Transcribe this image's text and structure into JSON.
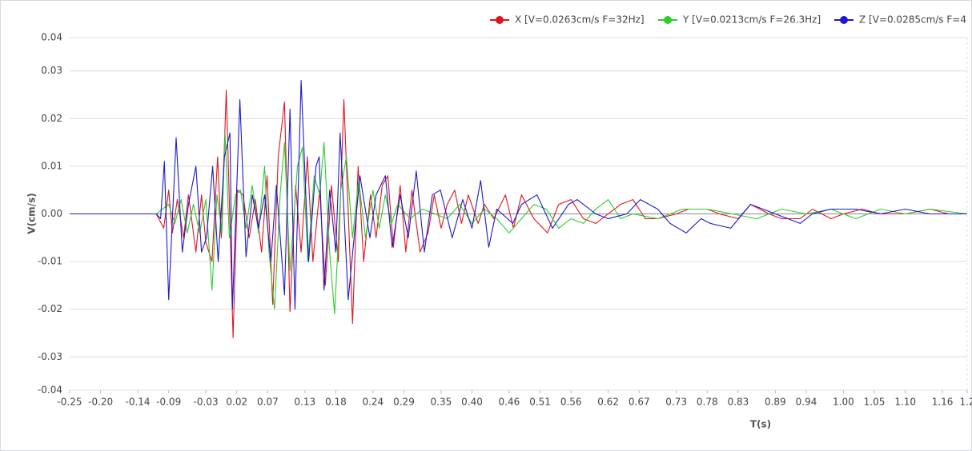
{
  "chart_data": {
    "type": "line",
    "y_label": "V(cm/s)",
    "x_label": "T(s)",
    "xlim": [
      -0.25,
      1.2
    ],
    "ylim": [
      -0.037,
      0.037
    ],
    "xticks": [
      -0.25,
      {
        "value": -0.2,
        "label": "-0.20"
      },
      -0.14,
      -0.09,
      -0.03,
      0.02,
      0.07,
      0.13,
      0.18,
      0.24,
      0.29,
      0.35,
      {
        "value": 0.4,
        "label": "0.40"
      },
      0.46,
      0.51,
      0.56,
      0.62,
      0.67,
      0.73,
      0.78,
      0.83,
      0.89,
      0.94,
      {
        "value": 1,
        "label": "1.00"
      },
      1.05,
      {
        "value": 1.1,
        "label": "1.10"
      },
      1.16,
      1.2
    ],
    "yticks": [
      {
        "value": 0.037,
        "label": "0.04"
      },
      0.03,
      0.02,
      0.01,
      {
        "value": 0,
        "label": "0.00"
      },
      -0.01,
      -0.02,
      -0.03,
      {
        "value": -0.037,
        "label": "-0.04"
      }
    ],
    "grid": true,
    "series": [
      {
        "name": "X [V=0.0263cm/s F=32Hz]",
        "color": "#e0141e",
        "x": [
          -0.25,
          -0.11,
          -0.098,
          -0.09,
          -0.084,
          -0.076,
          -0.066,
          -0.058,
          -0.046,
          -0.037,
          -0.03,
          -0.02,
          -0.011,
          -0.005,
          0.003,
          0.014,
          0.021,
          0.03,
          0.04,
          0.05,
          0.06,
          0.069,
          0.078,
          0.087,
          0.097,
          0.106,
          0.115,
          0.124,
          0.134,
          0.143,
          0.154,
          0.163,
          0.173,
          0.184,
          0.193,
          0.207,
          0.216,
          0.225,
          0.236,
          0.245,
          0.255,
          0.264,
          0.273,
          0.284,
          0.293,
          0.303,
          0.316,
          0.329,
          0.339,
          0.35,
          0.36,
          0.372,
          0.383,
          0.394,
          0.41,
          0.42,
          0.435,
          0.454,
          0.467,
          0.48,
          0.5,
          0.522,
          0.54,
          0.56,
          0.58,
          0.6,
          0.62,
          0.64,
          0.66,
          0.68,
          0.7,
          0.73,
          0.75,
          0.78,
          0.8,
          0.83,
          0.85,
          0.88,
          0.9,
          0.93,
          0.95,
          0.98,
          1.0,
          1.03,
          1.06,
          1.1,
          1.14,
          1.17,
          1.2
        ],
        "values": [
          0,
          0,
          -0.003,
          0.005,
          -0.004,
          0.003,
          -0.005,
          0.004,
          -0.008,
          0.004,
          -0.006,
          -0.01,
          0.012,
          -0.005,
          0.026,
          -0.026,
          0.005,
          0.004,
          -0.005,
          0.003,
          -0.008,
          0.008,
          -0.019,
          0.012,
          0.0235,
          -0.0205,
          0.006,
          -0.008,
          0.012,
          -0.01,
          0.005,
          -0.015,
          0.006,
          -0.01,
          0.024,
          -0.023,
          0.01,
          -0.01,
          0.004,
          -0.005,
          0.006,
          0.008,
          -0.007,
          0.006,
          -0.008,
          0.005,
          -0.008,
          -0.004,
          0.004,
          -0.003,
          0.002,
          0.005,
          -0.002,
          0.004,
          -0.002,
          0.002,
          -0.001,
          0.004,
          -0.003,
          0.004,
          -0.001,
          -0.004,
          0.002,
          0.003,
          -0.001,
          -0.002,
          0,
          0.002,
          0.003,
          -0.001,
          -0.001,
          0,
          0.001,
          0.001,
          0,
          -0.001,
          0.002,
          0,
          -0.001,
          -0.001,
          0.001,
          -0.001,
          0,
          0.001,
          0,
          0,
          0.001,
          0,
          0
        ]
      },
      {
        "name": "Y [V=0.0213cm/s F=26.3Hz]",
        "color": "#2ecc2e",
        "x": [
          -0.25,
          -0.11,
          -0.09,
          -0.08,
          -0.07,
          -0.06,
          -0.05,
          -0.04,
          -0.03,
          -0.02,
          -0.012,
          -0.004,
          0.001,
          0.008,
          0.018,
          0.026,
          0.035,
          0.045,
          0.055,
          0.065,
          0.072,
          0.081,
          0.09,
          0.097,
          0.106,
          0.118,
          0.126,
          0.135,
          0.145,
          0.154,
          0.161,
          0.17,
          0.178,
          0.188,
          0.197,
          0.207,
          0.217,
          0.228,
          0.24,
          0.25,
          0.26,
          0.27,
          0.28,
          0.3,
          0.32,
          0.34,
          0.36,
          0.38,
          0.4,
          0.42,
          0.44,
          0.46,
          0.48,
          0.5,
          0.52,
          0.54,
          0.56,
          0.58,
          0.6,
          0.62,
          0.64,
          0.66,
          0.7,
          0.74,
          0.78,
          0.82,
          0.86,
          0.9,
          0.94,
          0.98,
          1.02,
          1.06,
          1.1,
          1.14,
          1.2
        ],
        "values": [
          0,
          0,
          0.002,
          -0.002,
          0.003,
          -0.004,
          0.002,
          -0.004,
          0.003,
          -0.016,
          0.004,
          -0.004,
          0.017,
          -0.005,
          0.004,
          0.005,
          -0.003,
          0.006,
          -0.004,
          0.01,
          -0.008,
          -0.02,
          0.004,
          0.015,
          -0.012,
          0.01,
          0.014,
          -0.01,
          0.008,
          0.004,
          0.015,
          -0.008,
          -0.021,
          0.005,
          0.012,
          -0.005,
          0.007,
          -0.005,
          0.005,
          -0.003,
          0.004,
          -0.002,
          0.002,
          -0.001,
          0.001,
          0,
          -0.001,
          0.002,
          -0.002,
          0.001,
          -0.001,
          -0.004,
          -0.001,
          0.002,
          0.001,
          -0.003,
          -0.001,
          -0.002,
          0.001,
          0.003,
          -0.001,
          0,
          -0.001,
          0.001,
          0.001,
          0,
          -0.001,
          0.001,
          0,
          0.001,
          -0.001,
          0.001,
          0,
          0.001,
          0
        ]
      },
      {
        "name": "Z [V=0.0285cm/s F=4",
        "color": "#1a1ad0",
        "x": [
          -0.25,
          -0.11,
          -0.103,
          -0.097,
          -0.09,
          -0.078,
          -0.068,
          -0.058,
          -0.046,
          -0.037,
          -0.029,
          -0.019,
          -0.01,
          0.0,
          0.009,
          0.013,
          0.025,
          0.035,
          0.045,
          0.055,
          0.065,
          0.075,
          0.084,
          0.097,
          0.106,
          0.114,
          0.124,
          0.136,
          0.148,
          0.153,
          0.161,
          0.17,
          0.18,
          0.187,
          0.2,
          0.219,
          0.235,
          0.245,
          0.26,
          0.271,
          0.284,
          0.297,
          0.31,
          0.323,
          0.336,
          0.349,
          0.368,
          0.385,
          0.4,
          0.414,
          0.427,
          0.44,
          0.466,
          0.48,
          0.505,
          0.53,
          0.556,
          0.57,
          0.6,
          0.62,
          0.65,
          0.672,
          0.7,
          0.72,
          0.746,
          0.77,
          0.785,
          0.818,
          0.85,
          0.87,
          0.89,
          0.93,
          0.95,
          0.98,
          1.02,
          1.06,
          1.1,
          1.14,
          1.2
        ],
        "values": [
          0,
          0,
          -0.001,
          0.011,
          -0.018,
          0.016,
          -0.008,
          0.002,
          0.01,
          -0.008,
          -0.005,
          0.01,
          -0.01,
          0.012,
          0.017,
          -0.02,
          0.024,
          -0.009,
          0.004,
          -0.003,
          0.004,
          -0.01,
          0.006,
          -0.017,
          0.022,
          -0.02,
          0.028,
          -0.01,
          0.01,
          0.012,
          -0.016,
          0.005,
          -0.008,
          0.017,
          -0.018,
          0.008,
          -0.005,
          0.004,
          0.008,
          -0.007,
          0.004,
          -0.005,
          0.009,
          -0.008,
          0.004,
          0.005,
          -0.005,
          0.003,
          -0.003,
          0.007,
          -0.007,
          0.001,
          -0.002,
          0.002,
          0.004,
          -0.003,
          0.002,
          0.003,
          0,
          -0.001,
          0,
          0.003,
          0.001,
          -0.002,
          -0.004,
          -0.001,
          -0.002,
          -0.003,
          0.002,
          0.001,
          0,
          -0.002,
          0,
          0.001,
          0.001,
          0,
          0.001,
          0,
          0
        ]
      }
    ]
  }
}
